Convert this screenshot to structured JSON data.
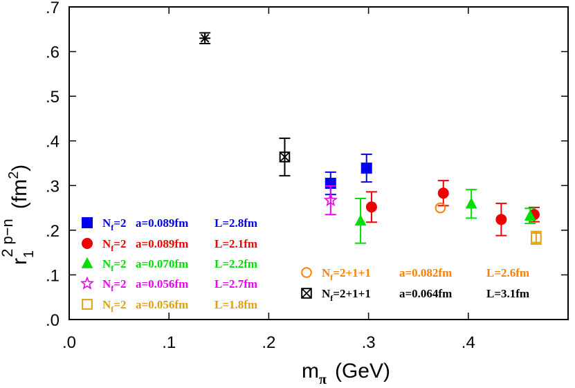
{
  "chart_data": {
    "type": "scatter",
    "title": "",
    "xlabel": {
      "main": "m",
      "sub": "π",
      "unit": "(GeV)"
    },
    "ylabel": {
      "main": "r",
      "sub": "1",
      "sup": "2 p−n",
      "unit": "(fm",
      "unit_sup": "2",
      "unit_close": ")"
    },
    "xlim": [
      0.0,
      0.5
    ],
    "ylim": [
      0.0,
      0.7
    ],
    "xticks": [
      {
        "v": 0.0,
        "label": ".0"
      },
      {
        "v": 0.1,
        "label": ".1"
      },
      {
        "v": 0.2,
        "label": ".2"
      },
      {
        "v": 0.3,
        "label": ".3"
      },
      {
        "v": 0.4,
        "label": ".4"
      }
    ],
    "yticks": [
      {
        "v": 0.0,
        "label": ".0"
      },
      {
        "v": 0.1,
        "label": ".1"
      },
      {
        "v": 0.2,
        "label": ".2"
      },
      {
        "v": 0.3,
        "label": ".3"
      },
      {
        "v": 0.4,
        "label": ".4"
      },
      {
        "v": 0.5,
        "label": ".5"
      },
      {
        "v": 0.6,
        "label": ".6"
      },
      {
        "v": 0.7,
        "label": ".7"
      }
    ],
    "grid": false,
    "legend_position": "bottom-left and bottom-right",
    "series": [
      {
        "legend": {
          "nf": "2",
          "a": "a=0.089fm",
          "L": "L=2.8fm"
        },
        "marker": "filled-square",
        "color": "#0000ee",
        "points": [
          {
            "x": 0.262,
            "y": 0.305,
            "err": 0.025
          },
          {
            "x": 0.298,
            "y": 0.339,
            "err": 0.031
          }
        ]
      },
      {
        "legend": {
          "nf": "2",
          "a": "a=0.089fm",
          "L": "L=2.1fm"
        },
        "marker": "filled-circle",
        "color": "#ee0000",
        "points": [
          {
            "x": 0.303,
            "y": 0.252,
            "err": 0.034
          },
          {
            "x": 0.375,
            "y": 0.283,
            "err": 0.028
          },
          {
            "x": 0.433,
            "y": 0.224,
            "err": 0.036
          },
          {
            "x": 0.466,
            "y": 0.235,
            "err": 0.016
          }
        ]
      },
      {
        "legend": {
          "nf": "2",
          "a": "a=0.070fm",
          "L": "L=2.2fm"
        },
        "marker": "filled-triangle",
        "color": "#00dd00",
        "points": [
          {
            "x": 0.292,
            "y": 0.221,
            "err": 0.05
          },
          {
            "x": 0.403,
            "y": 0.259,
            "err": 0.032
          },
          {
            "x": 0.462,
            "y": 0.232,
            "err": 0.017
          }
        ]
      },
      {
        "legend": {
          "nf": "2",
          "a": "a=0.056fm",
          "L": "L=2.7fm"
        },
        "marker": "open-star",
        "color": "#ee00ee",
        "points": [
          {
            "x": 0.262,
            "y": 0.267,
            "err": 0.032
          }
        ]
      },
      {
        "legend": {
          "nf": "2",
          "a": "a=0.056fm",
          "L": "L=1.8fm"
        },
        "marker": "open-square",
        "color": "#dda011",
        "points": [
          {
            "x": 0.468,
            "y": 0.183,
            "err": 0.014
          }
        ]
      },
      {
        "legend": {
          "nf": "2+1+1",
          "a": "a=0.082fm",
          "L": "L=2.6fm"
        },
        "marker": "open-circle",
        "color": "#ff7f00",
        "points": [
          {
            "x": 0.372,
            "y": 0.25,
            "err": 0.0
          }
        ]
      },
      {
        "legend": {
          "nf": "2+1+1",
          "a": "a=0.064fm",
          "L": "L=3.1fm"
        },
        "marker": "crossed-square",
        "color": "#000000",
        "points": [
          {
            "x": 0.216,
            "y": 0.364,
            "err": 0.042
          }
        ]
      },
      {
        "legend": null,
        "marker": "asterisk",
        "color": "#000000",
        "points": [
          {
            "x": 0.136,
            "y": 0.63,
            "err": 0.012
          }
        ]
      }
    ]
  }
}
